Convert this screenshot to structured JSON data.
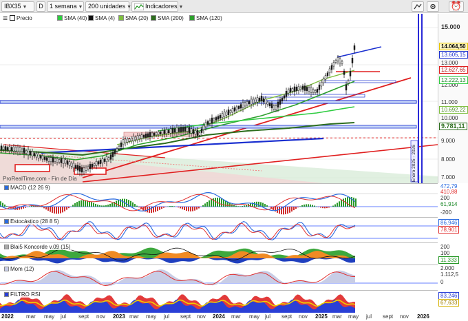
{
  "toolbar": {
    "symbol": "IBX35",
    "period_key": "D",
    "interval": "1 semana",
    "units": "200 unidades",
    "indicators": "Indicadores"
  },
  "legend": {
    "price": "Precio",
    "sma40": "SMA (40)",
    "sma4": "SMA (4)",
    "sma20": "SMA (20)",
    "sma200": "SMA (200)",
    "sma120": "SMA (120)",
    "watermark": "ProRealTime.com - Fin de Día"
  },
  "colors": {
    "price_candle": "#1a1a1a",
    "sma40": "#2ecc40",
    "sma4": "#111111",
    "sma20": "#7fbf3f",
    "sma200": "#2d6e1e",
    "sma120": "#2da02d",
    "trend_red": "#e02020",
    "trend_blue": "#1a2fd0",
    "now_line": "#2a2ad8"
  },
  "price_axis": {
    "ticks": [
      "15.000",
      "13.000",
      "12.000",
      "11.000",
      "10.000",
      "9.000",
      "8.000",
      "7.000"
    ],
    "last_price": "14.064,50",
    "tags": [
      "13.605,15",
      "12.627,65",
      "12.222,13",
      "10.692,22",
      "9.781,11"
    ]
  },
  "side_label": "Enero 2025 - 2026",
  "panels": {
    "macd": {
      "title": "MACD (12 26 9)",
      "ticks": [
        "472,79",
        "410,88",
        "61,914",
        "200",
        "-200"
      ]
    },
    "stoch": {
      "title": "Estocástico (28 8 5)",
      "ticks": [
        "86,946",
        "78,901"
      ]
    },
    "blai": {
      "title": "Blai5 Koncorde v.09 (15)",
      "ticks": [
        "200",
        "100",
        "11,333"
      ]
    },
    "mom": {
      "title": "Mom (12)",
      "ticks": [
        "2.000",
        "1.112,5",
        "0"
      ]
    },
    "rsi": {
      "title": "FILTRO RSI",
      "ticks": [
        "83,246",
        "67,633"
      ]
    }
  },
  "x_axis": [
    {
      "label": "2022",
      "year": true
    },
    {
      "label": "mar"
    },
    {
      "label": "may"
    },
    {
      "label": "jul"
    },
    {
      "label": "sept"
    },
    {
      "label": "nov"
    },
    {
      "label": "2023",
      "year": true
    },
    {
      "label": "mar"
    },
    {
      "label": "may"
    },
    {
      "label": "jul"
    },
    {
      "label": "sept"
    },
    {
      "label": "nov"
    },
    {
      "label": "2024",
      "year": true
    },
    {
      "label": "mar"
    },
    {
      "label": "may"
    },
    {
      "label": "jul"
    },
    {
      "label": "sept"
    },
    {
      "label": "nov"
    },
    {
      "label": "2025",
      "year": true
    },
    {
      "label": "mar"
    },
    {
      "label": "may"
    },
    {
      "label": "jul"
    },
    {
      "label": "sept"
    },
    {
      "label": "nov"
    },
    {
      "label": "2026",
      "year": true
    }
  ]
}
